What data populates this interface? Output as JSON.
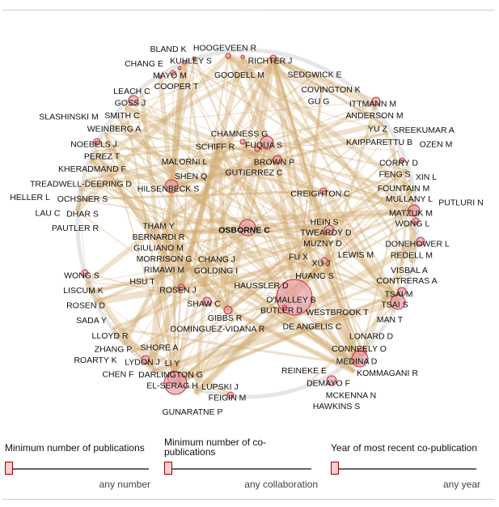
{
  "network": {
    "edge_color": "#d2aa6e",
    "node_fill": "#e8a0a8",
    "node_stroke": "#c0303c",
    "ring_color": "#e6e6e6",
    "nodes": [
      {
        "label": "KUHLEY S"
      },
      {
        "label": "HOOGEVEEN R"
      },
      {
        "label": "GOODELL M"
      },
      {
        "label": "RICHTER J"
      },
      {
        "label": "BLAND K"
      },
      {
        "label": "COOPER T"
      },
      {
        "label": "MAYO M"
      },
      {
        "label": "CHANG E"
      },
      {
        "label": "SEDGWICK E"
      },
      {
        "label": "COVINGTON K"
      },
      {
        "label": "GU G"
      },
      {
        "label": "LEACH C"
      },
      {
        "label": "GOSS J"
      },
      {
        "label": "SMITH C"
      },
      {
        "label": "WEINBERG A"
      },
      {
        "label": "SLASHINSKI M"
      },
      {
        "label": "PEREZ T"
      },
      {
        "label": "NOEBELS J"
      },
      {
        "label": "KHERADMAND F"
      },
      {
        "label": "TREADWELL-DEERING D"
      },
      {
        "label": "OCHSNER S"
      },
      {
        "label": "DHAR S"
      },
      {
        "label": "HELLER L"
      },
      {
        "label": "PAUTLER R"
      },
      {
        "label": "LAU C"
      },
      {
        "label": "HILSENBECK S"
      },
      {
        "label": "MALORNI L"
      },
      {
        "label": "SHEN Q"
      },
      {
        "label": "SCHIFF R"
      },
      {
        "label": "CHAMNESS G"
      },
      {
        "label": "FUQUA S"
      },
      {
        "label": "GUTIERREZ C"
      },
      {
        "label": "BROWN P"
      },
      {
        "label": "CREIGHTON C"
      },
      {
        "label": "ITTMANN M"
      },
      {
        "label": "ANDERSON M"
      },
      {
        "label": "YU Z"
      },
      {
        "label": "KAIPPARETTU B"
      },
      {
        "label": "SREEKUMAR A"
      },
      {
        "label": "OZEN M"
      },
      {
        "label": "FENG S"
      },
      {
        "label": "CORRY D"
      },
      {
        "label": "FOUNTAIN M"
      },
      {
        "label": "XIN L"
      },
      {
        "label": "MULLANY L"
      },
      {
        "label": "PUTLURI N"
      },
      {
        "label": "MATZUK M"
      },
      {
        "label": "WONG L"
      },
      {
        "label": "REDELL M"
      },
      {
        "label": "DONEHOWER L"
      },
      {
        "label": "VISBAL A"
      },
      {
        "label": "CONTRERAS A"
      },
      {
        "label": "TSAI M"
      },
      {
        "label": "TSAI S"
      },
      {
        "label": "MAN T"
      },
      {
        "label": "THAM Y"
      },
      {
        "label": "BERNARDI R"
      },
      {
        "label": "GIULIANO M"
      },
      {
        "label": "MORRISON G"
      },
      {
        "label": "RIMAWI M"
      },
      {
        "label": "CHANG J"
      },
      {
        "label": "GOLDING I"
      },
      {
        "label": "HSU T"
      },
      {
        "label": "ROSEN J"
      },
      {
        "label": "WONG S"
      },
      {
        "label": "LISCUM K"
      },
      {
        "label": "ROSEN D"
      },
      {
        "label": "SADA Y"
      },
      {
        "label": "OSBORNE C",
        "bold": true
      },
      {
        "label": "TWEARDY D"
      },
      {
        "label": "MUZNY D"
      },
      {
        "label": "HEIN S"
      },
      {
        "label": "LEWIS M"
      },
      {
        "label": "FU X"
      },
      {
        "label": "XU J"
      },
      {
        "label": "HUANG S"
      },
      {
        "label": "WESTBROOK T"
      },
      {
        "label": "HAUSSLER D"
      },
      {
        "label": "DE ANGELIS C"
      },
      {
        "label": "O'MALLEY B"
      },
      {
        "label": "BUTLER D"
      },
      {
        "label": "SHAW C"
      },
      {
        "label": "DOMINGUEZ-VIDANA R"
      },
      {
        "label": "GIBBS R"
      },
      {
        "label": "LLOYD R"
      },
      {
        "label": "ZHANG P"
      },
      {
        "label": "SHORE A"
      },
      {
        "label": "ROARTY K"
      },
      {
        "label": "LYDON J"
      },
      {
        "label": "LI Y"
      },
      {
        "label": "CHEN F"
      },
      {
        "label": "DARLINGTON G"
      },
      {
        "label": "EL-SERAG H"
      },
      {
        "label": "LUPSKI J"
      },
      {
        "label": "GUNARATNE P"
      },
      {
        "label": "FEIGIN M"
      },
      {
        "label": "LONARD D"
      },
      {
        "label": "CONNEELY O"
      },
      {
        "label": "MEDINA D"
      },
      {
        "label": "KOMMAGANI R"
      },
      {
        "label": "MCKENNA N"
      },
      {
        "label": "HAWKINS S"
      },
      {
        "label": "DEMAYO F"
      },
      {
        "label": "REINEKE E"
      }
    ]
  },
  "filters": [
    {
      "label": "Minimum number of publications",
      "caption": "any number",
      "value": 0
    },
    {
      "label": "Minimum number of co-publications",
      "caption": "any collaboration",
      "value": 0
    },
    {
      "label": "Year of most recent co-publication",
      "caption": "any year",
      "value": 0
    }
  ]
}
